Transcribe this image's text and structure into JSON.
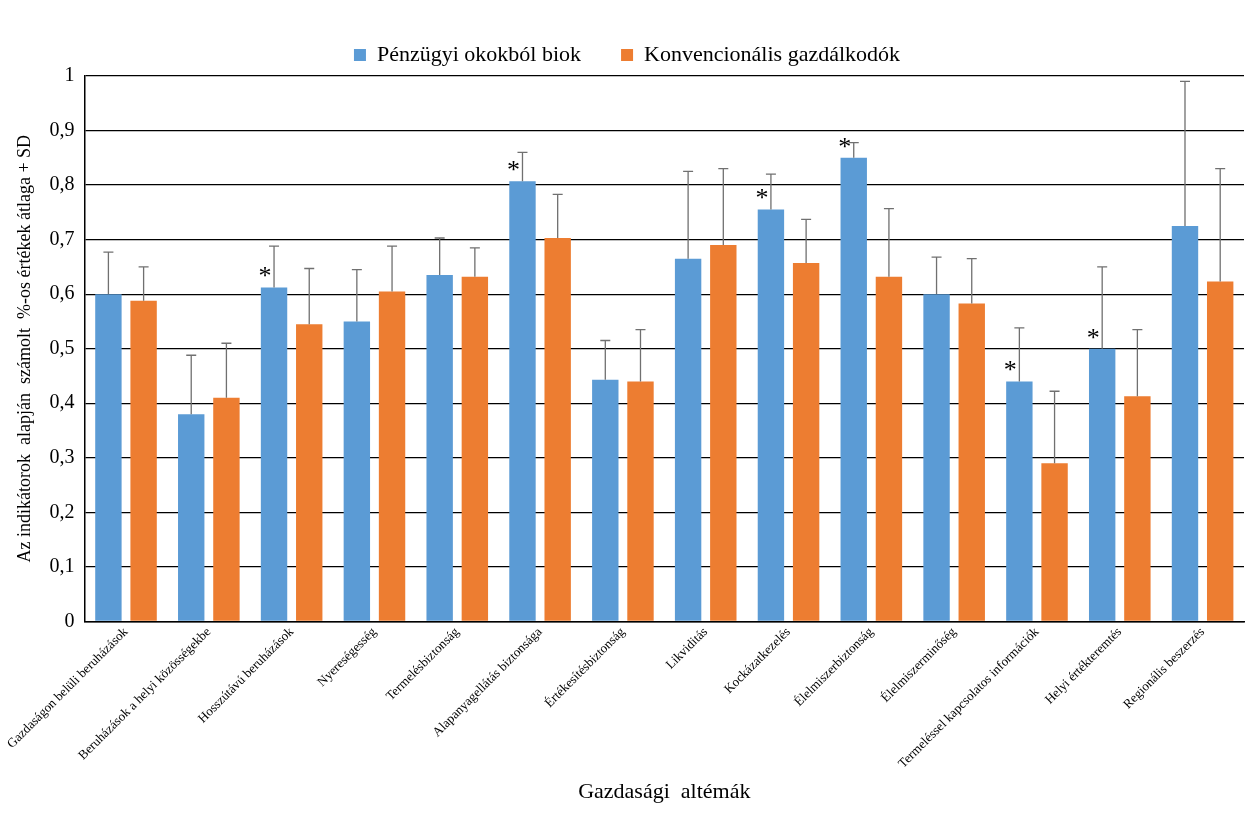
{
  "chart_data": {
    "type": "bar",
    "xlabel": "Gazdasági  altémák",
    "ylabel": "Az indikátorok  alapján  számolt  %-os értékek átlaga + SD",
    "categories": [
      "Gazdaságon belüli beruházások",
      "Beruházások a helyi közösségekbe",
      "Hosszútávú beruházások",
      "Nyereségesség",
      "Termelésbiztonság",
      "Alapanyagellátás biztonsága",
      "Értékesítésbiztonság",
      "Likviditás",
      "Kockázatkezelés",
      "Élelmiszerbiztonság",
      "Élelmiszerminőség",
      "Termeléssel kapcsolatos információk",
      "Helyi értékteremtés",
      "Regionális beszerzés"
    ],
    "series": [
      {
        "name": "Pénzügyi okokból biok",
        "color": "#5b9bd5",
        "values": [
          0.6,
          0.38,
          0.612,
          0.55,
          0.635,
          0.807,
          0.443,
          0.665,
          0.755,
          0.85,
          0.6,
          0.44,
          0.5,
          0.725
        ],
        "errors": [
          [
            0.6,
            0.677
          ],
          [
            0.38,
            0.488
          ],
          [
            0.612,
            0.688
          ],
          [
            0.55,
            0.645
          ],
          [
            0.635,
            0.703
          ],
          [
            0.807,
            0.86
          ],
          [
            0.443,
            0.515
          ],
          [
            0.665,
            0.825
          ],
          [
            0.755,
            0.82
          ],
          [
            0.85,
            0.878
          ],
          [
            0.6,
            0.668
          ],
          [
            0.44,
            0.538
          ],
          [
            0.5,
            0.65
          ],
          [
            0.725,
            0.99
          ]
        ]
      },
      {
        "name": "Konvencionális gazdálkodók",
        "color": "#ed7d31",
        "values": [
          0.588,
          0.41,
          0.545,
          0.605,
          0.632,
          0.703,
          0.44,
          0.69,
          0.657,
          0.632,
          0.583,
          0.29,
          0.413,
          0.623
        ],
        "errors": [
          [
            0.588,
            0.65
          ],
          [
            0.41,
            0.51
          ],
          [
            0.545,
            0.647
          ],
          [
            0.605,
            0.688
          ],
          [
            0.632,
            0.685
          ],
          [
            0.703,
            0.783
          ],
          [
            0.44,
            0.535
          ],
          [
            0.69,
            0.83
          ],
          [
            0.657,
            0.737
          ],
          [
            0.632,
            0.757
          ],
          [
            0.583,
            0.665
          ],
          [
            0.29,
            0.422
          ],
          [
            0.413,
            0.535
          ],
          [
            0.623,
            0.83
          ]
        ]
      }
    ],
    "ylim": [
      0,
      1
    ],
    "yticks": [
      0,
      {
        "value": 0.1,
        "label": "0,1"
      },
      {
        "value": 0.2,
        "label": "0,2"
      },
      {
        "value": 0.3,
        "label": "0,3"
      },
      {
        "value": 0.4,
        "label": "0,4"
      },
      {
        "value": 0.5,
        "label": "0,5"
      },
      {
        "value": 0.6,
        "label": "0,6"
      },
      {
        "value": 0.7,
        "label": "0,7"
      },
      {
        "value": 0.8,
        "label": "0,8"
      },
      {
        "value": 0.9,
        "label": "0,9"
      },
      1
    ],
    "grid": "y",
    "legend": "top",
    "annotations": [
      {
        "text": "*",
        "x": "Hosszútávú beruházások",
        "y": 0.612
      },
      {
        "text": "*",
        "x": "Alapanyagellátás biztonsága",
        "y": 0.807
      },
      {
        "text": "*",
        "x": "Kockázatkezelés",
        "y": 0.755
      },
      {
        "text": "*",
        "x": "Élelmiszerbiztonság",
        "y": 0.85
      },
      {
        "text": "*",
        "x": "Termeléssel kapcsolatos információk",
        "y": 0.44
      },
      {
        "text": "*",
        "x": "Helyi értékteremtés",
        "y": 0.5
      }
    ]
  }
}
